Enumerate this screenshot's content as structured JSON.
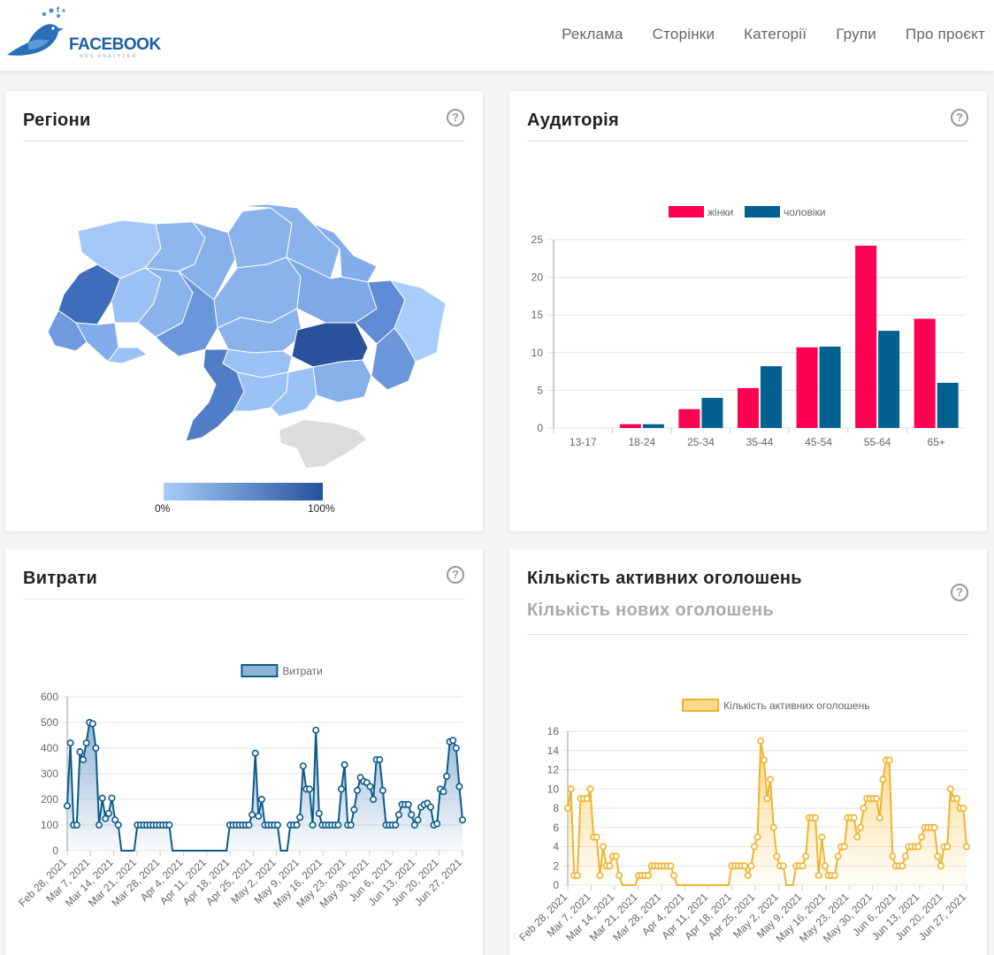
{
  "brand": {
    "name": "FACEBOOK",
    "tagline": "ADS ANALYZER"
  },
  "nav": [
    "Реклама",
    "Сторінки",
    "Категорії",
    "Групи",
    "Про проєкт"
  ],
  "colors": {
    "female": "#ff0052",
    "male": "#03618f",
    "spend": "#0b5a8c",
    "active": "#f0b32c",
    "mapLow": "#a7cdfa",
    "mapHigh": "#26529d"
  },
  "regions": {
    "title": "Регіони",
    "legend_min": "0%",
    "legend_max": "100%"
  },
  "audience": {
    "title": "Аудиторія"
  },
  "spend": {
    "title": "Витрати"
  },
  "ads": {
    "title": "Кількість активних оголошень",
    "subtitle": "Кількість нових оголошень"
  },
  "chart_data": [
    {
      "type": "bar",
      "title": "",
      "categories": [
        "13-17",
        "18-24",
        "25-34",
        "35-44",
        "45-54",
        "55-64",
        "65+"
      ],
      "series": [
        {
          "name": "жінки",
          "values": [
            0,
            0.5,
            2.5,
            5.3,
            10.7,
            24.2,
            14.5
          ]
        },
        {
          "name": "чоловіки",
          "values": [
            0,
            0.5,
            4.0,
            8.2,
            10.8,
            12.9,
            6.0
          ]
        }
      ],
      "yticks": [
        0,
        5,
        10,
        15,
        20,
        25
      ],
      "ylim": [
        0,
        25
      ],
      "legend": "top",
      "grid": true
    },
    {
      "type": "area",
      "title": "",
      "series": [
        {
          "name": "Витрати",
          "values": [
            175,
            420,
            100,
            100,
            385,
            355,
            420,
            500,
            495,
            400,
            100,
            205,
            125,
            145,
            205,
            120,
            100,
            0,
            0,
            0,
            0,
            0,
            100,
            100,
            100,
            100,
            100,
            100,
            100,
            100,
            100,
            100,
            100,
            0,
            0,
            0,
            0,
            0,
            0,
            0,
            0,
            0,
            0,
            0,
            0,
            0,
            0,
            0,
            0,
            0,
            0,
            100,
            100,
            100,
            100,
            100,
            100,
            100,
            140,
            380,
            135,
            200,
            100,
            100,
            100,
            100,
            100,
            0,
            0,
            0,
            100,
            100,
            100,
            130,
            330,
            240,
            240,
            100,
            470,
            145,
            100,
            100,
            100,
            100,
            100,
            100,
            240,
            335,
            100,
            100,
            160,
            235,
            285,
            270,
            265,
            250,
            200,
            355,
            355,
            235,
            100,
            100,
            100,
            100,
            140,
            180,
            180,
            180,
            140,
            100,
            120,
            170,
            180,
            185,
            170,
            100,
            105,
            240,
            230,
            290,
            425,
            430,
            400,
            250,
            120
          ]
        }
      ],
      "x_ticks": [
        "Feb 28, 2021",
        "Mar 7, 2021",
        "Mar 14, 2021",
        "Mar 21, 2021",
        "Mar 28, 2021",
        "Apr 4, 2021",
        "Apr 11, 2021",
        "Apr 18, 2021",
        "Apr 25, 2021",
        "May 2, 2021",
        "May 9, 2021",
        "May 16, 2021",
        "May 23, 2021",
        "May 30, 2021",
        "Jun 6, 2021",
        "Jun 13, 2021",
        "Jun 20, 2021",
        "Jun 27, 2021"
      ],
      "yticks": [
        0,
        100,
        200,
        300,
        400,
        500,
        600
      ],
      "ylim": [
        0,
        600
      ],
      "legend": "top"
    },
    {
      "type": "area",
      "title": "",
      "series": [
        {
          "name": "Кількість активних оголошень",
          "values": [
            8,
            10,
            1,
            1,
            9,
            9,
            9,
            10,
            5,
            5,
            1,
            4,
            2,
            2,
            3,
            3,
            1,
            0,
            0,
            0,
            0,
            0,
            1,
            1,
            1,
            1,
            2,
            2,
            2,
            2,
            2,
            2,
            2,
            1,
            0,
            0,
            0,
            0,
            0,
            0,
            0,
            0,
            0,
            0,
            0,
            0,
            0,
            0,
            0,
            0,
            0,
            2,
            2,
            2,
            2,
            2,
            1,
            2,
            4,
            5,
            15,
            13,
            9,
            11,
            6,
            3,
            2,
            2,
            0,
            0,
            0,
            2,
            2,
            2,
            3,
            7,
            7,
            7,
            1,
            5,
            2,
            1,
            1,
            1,
            3,
            4,
            4,
            7,
            7,
            7,
            5,
            6,
            8,
            9,
            9,
            9,
            9,
            7,
            11,
            13,
            13,
            3,
            2,
            2,
            2,
            3,
            4,
            4,
            4,
            4,
            5,
            6,
            6,
            6,
            6,
            3,
            2,
            4,
            4,
            10,
            9,
            9,
            8,
            8,
            4
          ]
        }
      ],
      "x_ticks": [
        "Feb 28, 2021",
        "Mar 7, 2021",
        "Mar 14, 2021",
        "Mar 21, 2021",
        "Mar 28, 2021",
        "Apr 4, 2021",
        "Apr 11, 2021",
        "Apr 18, 2021",
        "Apr 25, 2021",
        "May 2, 2021",
        "May 9, 2021",
        "May 16, 2021",
        "May 23, 2021",
        "May 30, 2021",
        "Jun 6, 2021",
        "Jun 13, 2021",
        "Jun 20, 2021",
        "Jun 27, 2021"
      ],
      "yticks": [
        0,
        2,
        4,
        6,
        8,
        10,
        12,
        14,
        16
      ],
      "ylim": [
        0,
        16
      ],
      "legend": "top"
    }
  ]
}
